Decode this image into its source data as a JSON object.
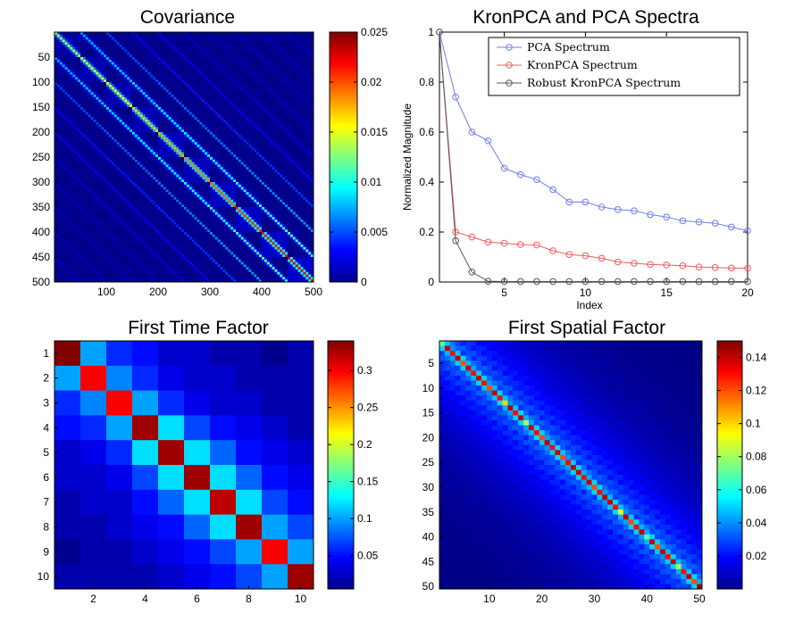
{
  "chart_data": [
    {
      "panel": "covariance",
      "type": "heatmap",
      "title": "Covariance",
      "matrix_size": 500,
      "block_size": 50,
      "n_blocks": 10,
      "description_values": {
        "diag_peak": 0.024,
        "offdiag_band_levels": [
          0.01,
          0.006,
          0.004,
          0.003,
          0.002
        ]
      },
      "xticks": [
        "100",
        "200",
        "300",
        "400",
        "500"
      ],
      "xtick_values": [
        100,
        200,
        300,
        400,
        500
      ],
      "yticks": [
        "50",
        "100",
        "150",
        "200",
        "250",
        "300",
        "350",
        "400",
        "450",
        "500"
      ],
      "ytick_values": [
        50,
        100,
        150,
        200,
        250,
        300,
        350,
        400,
        450,
        500
      ],
      "colorbar": {
        "range": [
          0,
          0.025
        ],
        "ticks": [
          "0",
          "0.005",
          "0.01",
          "0.015",
          "0.02",
          "0.025"
        ],
        "tick_values": [
          0,
          0.005,
          0.01,
          0.015,
          0.02,
          0.025
        ]
      }
    },
    {
      "panel": "spectra",
      "type": "line",
      "title": "KronPCA and PCA Spectra",
      "xlabel": "Index",
      "ylabel": "Normalized Magnitude",
      "xlim": [
        1,
        20
      ],
      "ylim": [
        0,
        1
      ],
      "xticks": [
        "5",
        "10",
        "15",
        "20"
      ],
      "xtick_values": [
        5,
        10,
        15,
        20
      ],
      "yticks": [
        "0",
        "0.2",
        "0.4",
        "0.6",
        "0.8",
        "1"
      ],
      "ytick_values": [
        0,
        0.2,
        0.4,
        0.6,
        0.8,
        1
      ],
      "x": [
        1,
        2,
        3,
        4,
        5,
        6,
        7,
        8,
        9,
        10,
        11,
        12,
        13,
        14,
        15,
        16,
        17,
        18,
        19,
        20
      ],
      "series": [
        {
          "name": "PCA Spectrum",
          "color": "#6f7cf0",
          "values": [
            1.0,
            0.74,
            0.6,
            0.565,
            0.455,
            0.43,
            0.41,
            0.37,
            0.32,
            0.32,
            0.3,
            0.29,
            0.285,
            0.27,
            0.26,
            0.245,
            0.24,
            0.235,
            0.22,
            0.205
          ]
        },
        {
          "name": "KronPCA Spectrum",
          "color": "#f05c5c",
          "values": [
            1.0,
            0.2,
            0.18,
            0.16,
            0.155,
            0.15,
            0.148,
            0.125,
            0.11,
            0.105,
            0.095,
            0.08,
            0.075,
            0.07,
            0.068,
            0.065,
            0.06,
            0.058,
            0.056,
            0.055
          ]
        },
        {
          "name": "Robust KronPCA Spectrum",
          "color": "#555555",
          "values": [
            1.0,
            0.165,
            0.04,
            0.003,
            0.002,
            0.002,
            0.002,
            0.002,
            0.002,
            0.002,
            0.002,
            0.002,
            0.002,
            0.002,
            0.002,
            0.002,
            0.002,
            0.002,
            0.002,
            0.002
          ]
        }
      ]
    },
    {
      "panel": "time-factor",
      "type": "heatmap",
      "title": "First Time Factor",
      "matrix": [
        [
          0.34,
          0.1,
          0.06,
          0.05,
          0.03,
          0.03,
          0.02,
          0.02,
          0.01,
          0.02
        ],
        [
          0.1,
          0.3,
          0.09,
          0.06,
          0.04,
          0.03,
          0.03,
          0.02,
          0.02,
          0.02
        ],
        [
          0.06,
          0.09,
          0.3,
          0.1,
          0.06,
          0.04,
          0.03,
          0.03,
          0.02,
          0.02
        ],
        [
          0.05,
          0.06,
          0.1,
          0.33,
          0.12,
          0.07,
          0.05,
          0.04,
          0.03,
          0.02
        ],
        [
          0.03,
          0.04,
          0.06,
          0.12,
          0.33,
          0.12,
          0.08,
          0.05,
          0.04,
          0.03
        ],
        [
          0.03,
          0.03,
          0.04,
          0.07,
          0.12,
          0.33,
          0.12,
          0.08,
          0.05,
          0.04
        ],
        [
          0.02,
          0.03,
          0.03,
          0.05,
          0.08,
          0.12,
          0.32,
          0.12,
          0.07,
          0.05
        ],
        [
          0.02,
          0.02,
          0.03,
          0.04,
          0.05,
          0.08,
          0.12,
          0.33,
          0.1,
          0.07
        ],
        [
          0.01,
          0.02,
          0.02,
          0.03,
          0.04,
          0.05,
          0.07,
          0.1,
          0.3,
          0.1
        ],
        [
          0.02,
          0.02,
          0.02,
          0.02,
          0.03,
          0.04,
          0.05,
          0.07,
          0.1,
          0.33
        ]
      ],
      "xticks": [
        "2",
        "4",
        "6",
        "8",
        "10"
      ],
      "xtick_values": [
        2,
        4,
        6,
        8,
        10
      ],
      "yticks": [
        "1",
        "2",
        "3",
        "4",
        "5",
        "6",
        "7",
        "8",
        "9",
        "10"
      ],
      "ytick_values": [
        1,
        2,
        3,
        4,
        5,
        6,
        7,
        8,
        9,
        10
      ],
      "colorbar": {
        "range": [
          0.005,
          0.34
        ],
        "ticks": [
          "0.05",
          "0.1",
          "0.15",
          "0.2",
          "0.25",
          "0.3"
        ],
        "tick_values": [
          0.05,
          0.1,
          0.15,
          0.2,
          0.25,
          0.3
        ]
      }
    },
    {
      "panel": "spatial-factor",
      "type": "heatmap",
      "title": "First Spatial Factor",
      "matrix_size": 50,
      "diag_values": [
        0.07,
        0.14,
        0.13,
        0.14,
        0.12,
        0.14,
        0.13,
        0.14,
        0.13,
        0.12,
        0.14,
        0.13,
        0.1,
        0.14,
        0.13,
        0.14,
        0.08,
        0.14,
        0.13,
        0.12,
        0.14,
        0.13,
        0.14,
        0.12,
        0.13,
        0.14,
        0.14,
        0.13,
        0.14,
        0.12,
        0.13,
        0.14,
        0.14,
        0.13,
        0.09,
        0.14,
        0.12,
        0.13,
        0.14,
        0.07,
        0.14,
        0.12,
        0.14,
        0.13,
        0.14,
        0.08,
        0.13,
        0.14,
        0.12,
        0.14
      ],
      "offdiag_level": 0.03,
      "xticks": [
        "10",
        "20",
        "30",
        "40",
        "50"
      ],
      "xtick_values": [
        10,
        20,
        30,
        40,
        50
      ],
      "yticks": [
        "5",
        "10",
        "15",
        "20",
        "25",
        "30",
        "35",
        "40",
        "45",
        "50"
      ],
      "ytick_values": [
        5,
        10,
        15,
        20,
        25,
        30,
        35,
        40,
        45,
        50
      ],
      "colorbar": {
        "range": [
          0,
          0.15
        ],
        "ticks": [
          "0.02",
          "0.04",
          "0.06",
          "0.08",
          "0.1",
          "0.12",
          "0.14"
        ],
        "tick_values": [
          0.02,
          0.04,
          0.06,
          0.08,
          0.1,
          0.12,
          0.14
        ]
      }
    }
  ]
}
